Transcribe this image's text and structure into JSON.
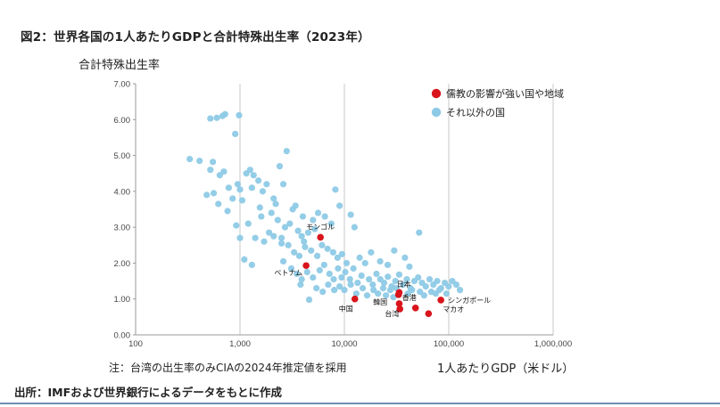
{
  "page": {
    "title": "図2：世界各国の1人あたりGDPと合計特殊出生率（2023年）",
    "note": "注：台湾の出生率のみCIAの2024年推定値を採用",
    "source": "出所：IMFおよび世界銀行によるデータをもとに作成"
  },
  "chart_data": {
    "type": "scatter",
    "x_scale": "log",
    "xlabel": "1人あたりGDP（米ドル）",
    "ylabel": "合計特殊出生率",
    "xlim": [
      100,
      1000000
    ],
    "ylim": [
      0,
      7
    ],
    "x_ticks": [
      "100",
      "1,000",
      "10,000",
      "100,000",
      "1,000,000"
    ],
    "y_ticks": [
      "0.00",
      "1.00",
      "2.00",
      "3.00",
      "4.00",
      "5.00",
      "6.00",
      "7.00"
    ],
    "grid": "vertical",
    "legend_position": "top-right",
    "series": [
      {
        "name": "儒教の影響が強い国や地域",
        "color": "#d9141b",
        "points": [
          {
            "x": 5900,
            "y": 2.72,
            "label": "モンゴル"
          },
          {
            "x": 4300,
            "y": 1.93,
            "label": "ベトナム"
          },
          {
            "x": 12600,
            "y": 1.0,
            "label": "中国"
          },
          {
            "x": 33000,
            "y": 1.12,
            "label": "日本"
          },
          {
            "x": 33500,
            "y": 1.18,
            "label": ""
          },
          {
            "x": 34000,
            "y": 0.72,
            "label": "韓国"
          },
          {
            "x": 48000,
            "y": 0.75,
            "label": "香港"
          },
          {
            "x": 33500,
            "y": 0.87,
            "label": "台湾"
          },
          {
            "x": 84000,
            "y": 0.97,
            "label": "シンガポール"
          },
          {
            "x": 64000,
            "y": 0.59,
            "label": "マカオ"
          }
        ]
      },
      {
        "name": "それ以外の国",
        "color": "#8ecae6",
        "points": [
          {
            "x": 520,
            "y": 6.03
          },
          {
            "x": 600,
            "y": 6.05
          },
          {
            "x": 680,
            "y": 6.1
          },
          {
            "x": 720,
            "y": 6.15
          },
          {
            "x": 980,
            "y": 6.12
          },
          {
            "x": 900,
            "y": 5.6
          },
          {
            "x": 330,
            "y": 4.9
          },
          {
            "x": 410,
            "y": 4.85
          },
          {
            "x": 550,
            "y": 4.82
          },
          {
            "x": 700,
            "y": 4.55
          },
          {
            "x": 520,
            "y": 4.6
          },
          {
            "x": 640,
            "y": 4.45
          },
          {
            "x": 480,
            "y": 3.9
          },
          {
            "x": 560,
            "y": 3.95
          },
          {
            "x": 620,
            "y": 3.65
          },
          {
            "x": 780,
            "y": 4.1
          },
          {
            "x": 850,
            "y": 3.8
          },
          {
            "x": 950,
            "y": 4.2
          },
          {
            "x": 1000,
            "y": 4.05
          },
          {
            "x": 1050,
            "y": 3.75
          },
          {
            "x": 1150,
            "y": 4.5
          },
          {
            "x": 1250,
            "y": 4.6
          },
          {
            "x": 1350,
            "y": 4.45
          },
          {
            "x": 1500,
            "y": 4.3
          },
          {
            "x": 1300,
            "y": 4.1
          },
          {
            "x": 1650,
            "y": 4.0
          },
          {
            "x": 1800,
            "y": 4.2
          },
          {
            "x": 2100,
            "y": 3.8
          },
          {
            "x": 2400,
            "y": 4.7
          },
          {
            "x": 2800,
            "y": 5.12
          },
          {
            "x": 2600,
            "y": 4.2
          },
          {
            "x": 2200,
            "y": 3.65
          },
          {
            "x": 3200,
            "y": 3.5
          },
          {
            "x": 3400,
            "y": 3.6
          },
          {
            "x": 1200,
            "y": 3.1
          },
          {
            "x": 1600,
            "y": 3.3
          },
          {
            "x": 2000,
            "y": 3.4
          },
          {
            "x": 2300,
            "y": 3.2
          },
          {
            "x": 2700,
            "y": 3.0
          },
          {
            "x": 3000,
            "y": 3.1
          },
          {
            "x": 3600,
            "y": 2.9
          },
          {
            "x": 3900,
            "y": 2.75
          },
          {
            "x": 4500,
            "y": 2.85
          },
          {
            "x": 5200,
            "y": 2.95
          },
          {
            "x": 6500,
            "y": 3.3
          },
          {
            "x": 7500,
            "y": 3.1
          },
          {
            "x": 8200,
            "y": 4.05
          },
          {
            "x": 9000,
            "y": 3.6
          },
          {
            "x": 11500,
            "y": 3.35
          },
          {
            "x": 12500,
            "y": 3.0
          },
          {
            "x": 1000,
            "y": 2.7
          },
          {
            "x": 1400,
            "y": 2.7
          },
          {
            "x": 1700,
            "y": 2.6
          },
          {
            "x": 2100,
            "y": 2.75
          },
          {
            "x": 2500,
            "y": 2.55
          },
          {
            "x": 2900,
            "y": 2.5
          },
          {
            "x": 3300,
            "y": 2.3
          },
          {
            "x": 3700,
            "y": 2.2
          },
          {
            "x": 4200,
            "y": 2.45
          },
          {
            "x": 4800,
            "y": 2.35
          },
          {
            "x": 5500,
            "y": 2.2
          },
          {
            "x": 6100,
            "y": 2.5
          },
          {
            "x": 6900,
            "y": 2.4
          },
          {
            "x": 7800,
            "y": 2.3
          },
          {
            "x": 8600,
            "y": 2.15
          },
          {
            "x": 9500,
            "y": 2.25
          },
          {
            "x": 10500,
            "y": 2.0
          },
          {
            "x": 1100,
            "y": 2.1
          },
          {
            "x": 1300,
            "y": 1.95
          },
          {
            "x": 2600,
            "y": 2.05
          },
          {
            "x": 3100,
            "y": 1.85
          },
          {
            "x": 3500,
            "y": 1.7
          },
          {
            "x": 3900,
            "y": 1.55
          },
          {
            "x": 4400,
            "y": 1.75
          },
          {
            "x": 5000,
            "y": 1.6
          },
          {
            "x": 5800,
            "y": 1.8
          },
          {
            "x": 6400,
            "y": 1.95
          },
          {
            "x": 7200,
            "y": 1.7
          },
          {
            "x": 7900,
            "y": 1.55
          },
          {
            "x": 8700,
            "y": 1.85
          },
          {
            "x": 9400,
            "y": 1.6
          },
          {
            "x": 10200,
            "y": 1.75
          },
          {
            "x": 11300,
            "y": 1.55
          },
          {
            "x": 12200,
            "y": 1.85
          },
          {
            "x": 13400,
            "y": 1.45
          },
          {
            "x": 14600,
            "y": 1.65
          },
          {
            "x": 15800,
            "y": 2.0
          },
          {
            "x": 17200,
            "y": 1.55
          },
          {
            "x": 18700,
            "y": 1.4
          },
          {
            "x": 20300,
            "y": 1.7
          },
          {
            "x": 22100,
            "y": 1.55
          },
          {
            "x": 24000,
            "y": 1.45
          },
          {
            "x": 26100,
            "y": 1.62
          },
          {
            "x": 28400,
            "y": 1.35
          },
          {
            "x": 30800,
            "y": 1.5
          },
          {
            "x": 33500,
            "y": 1.68
          },
          {
            "x": 36400,
            "y": 1.4
          },
          {
            "x": 39600,
            "y": 1.55
          },
          {
            "x": 43000,
            "y": 1.3
          },
          {
            "x": 46800,
            "y": 1.5
          },
          {
            "x": 50900,
            "y": 1.6
          },
          {
            "x": 55400,
            "y": 1.45
          },
          {
            "x": 60200,
            "y": 1.35
          },
          {
            "x": 65500,
            "y": 1.55
          },
          {
            "x": 71200,
            "y": 1.4
          },
          {
            "x": 77400,
            "y": 1.5
          },
          {
            "x": 84200,
            "y": 1.3
          },
          {
            "x": 91600,
            "y": 1.45
          },
          {
            "x": 99600,
            "y": 1.35
          },
          {
            "x": 108000,
            "y": 1.5
          },
          {
            "x": 118000,
            "y": 1.4
          },
          {
            "x": 128000,
            "y": 1.25
          },
          {
            "x": 52000,
            "y": 2.85
          },
          {
            "x": 42000,
            "y": 1.9
          },
          {
            "x": 38000,
            "y": 2.15
          },
          {
            "x": 30000,
            "y": 2.35
          },
          {
            "x": 22000,
            "y": 2.05
          },
          {
            "x": 18000,
            "y": 2.3
          },
          {
            "x": 14000,
            "y": 2.15
          },
          {
            "x": 26000,
            "y": 1.95
          },
          {
            "x": 4600,
            "y": 0.98
          },
          {
            "x": 5400,
            "y": 1.3
          },
          {
            "x": 6200,
            "y": 1.2
          },
          {
            "x": 7000,
            "y": 1.4
          },
          {
            "x": 8000,
            "y": 1.25
          },
          {
            "x": 9000,
            "y": 1.35
          },
          {
            "x": 10000,
            "y": 1.25
          },
          {
            "x": 11500,
            "y": 1.4
          },
          {
            "x": 13000,
            "y": 1.15
          },
          {
            "x": 15000,
            "y": 1.3
          },
          {
            "x": 16500,
            "y": 1.1
          },
          {
            "x": 19000,
            "y": 1.25
          },
          {
            "x": 21000,
            "y": 1.15
          },
          {
            "x": 23500,
            "y": 1.3
          },
          {
            "x": 25000,
            "y": 1.1
          },
          {
            "x": 27500,
            "y": 1.25
          },
          {
            "x": 29500,
            "y": 1.05
          },
          {
            "x": 31500,
            "y": 1.3
          },
          {
            "x": 40500,
            "y": 1.15
          },
          {
            "x": 44500,
            "y": 1.25
          },
          {
            "x": 53000,
            "y": 1.2
          },
          {
            "x": 58000,
            "y": 1.1
          },
          {
            "x": 68000,
            "y": 1.2
          },
          {
            "x": 75000,
            "y": 1.15
          },
          {
            "x": 81000,
            "y": 1.25
          },
          {
            "x": 95000,
            "y": 1.15
          },
          {
            "x": 3800,
            "y": 1.4
          },
          {
            "x": 4100,
            "y": 2.6
          },
          {
            "x": 2500,
            "y": 2.7
          },
          {
            "x": 1900,
            "y": 2.85
          },
          {
            "x": 1550,
            "y": 3.55
          },
          {
            "x": 920,
            "y": 3.05
          },
          {
            "x": 760,
            "y": 3.45
          },
          {
            "x": 5000,
            "y": 3.2
          },
          {
            "x": 5600,
            "y": 3.4
          },
          {
            "x": 4000,
            "y": 3.3
          }
        ]
      }
    ]
  }
}
